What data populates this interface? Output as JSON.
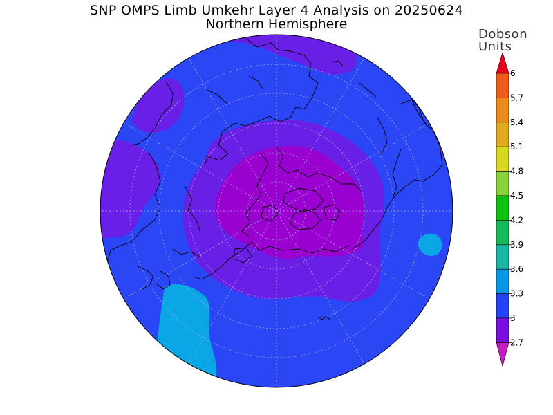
{
  "map": {
    "title": "SNP OMPS Limb Umkehr Layer 4 Analysis on 20250624",
    "subtitle": "Northern Hemisphere",
    "projection": "north-polar-stereographic",
    "field_colors": {
      "below_3_0": "#9a00d0",
      "band_3_0_3_3": "#6a1fe6",
      "band_3_3_3_6": "#2a46f5",
      "band_3_6_3_9": "#0aa6e6"
    }
  },
  "colorbar": {
    "units_line1": "Dobson",
    "units_line2": "Units",
    "ticks": [
      "6",
      "5.7",
      "5.4",
      "5.1",
      "4.8",
      "4.5",
      "4.2",
      "3.9",
      "3.6",
      "3.3",
      "3",
      "2.7"
    ],
    "colors": [
      "#e8001c",
      "#ee5a1a",
      "#ec8a1c",
      "#e0aa20",
      "#d8d820",
      "#8ad23a",
      "#10c010",
      "#16b85a",
      "#1ab6a6",
      "#0a96e6",
      "#2244f4",
      "#7a10e0",
      "#c41ec0"
    ]
  }
}
